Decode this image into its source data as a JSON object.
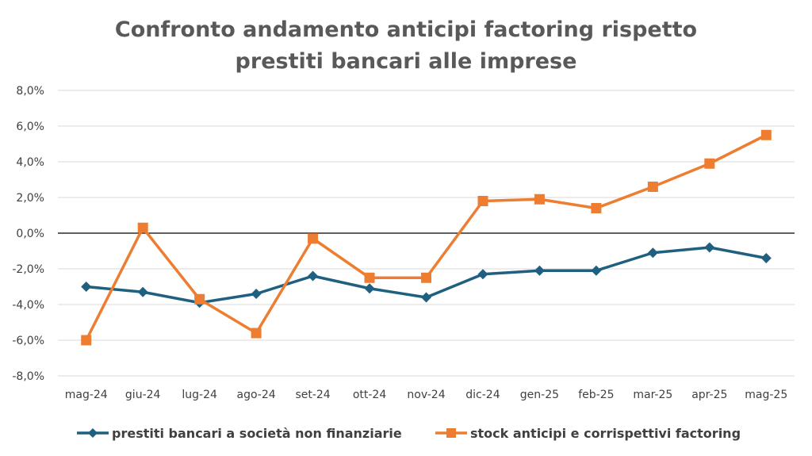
{
  "chart_data": {
    "type": "line",
    "title_line1": "Confronto andamento anticipi factoring rispetto",
    "title_line2": "prestiti bancari alle imprese",
    "categories": [
      "mag-24",
      "giu-24",
      "lug-24",
      "ago-24",
      "set-24",
      "ott-24",
      "nov-24",
      "dic-24",
      "gen-25",
      "feb-25",
      "mar-25",
      "apr-25",
      "mag-25"
    ],
    "ylim": [
      -8.0,
      8.0
    ],
    "yticks": [
      8.0,
      6.0,
      4.0,
      2.0,
      0.0,
      -2.0,
      -4.0,
      -6.0,
      -8.0
    ],
    "ytick_labels": [
      "8,0%",
      "6,0%",
      "4,0%",
      "2,0%",
      "0,0%",
      "-2,0%",
      "-4,0%",
      "-6,0%",
      "-8,0%"
    ],
    "grid": true,
    "legend_position": "bottom",
    "series": [
      {
        "name": "prestiti bancari a società non finanziarie",
        "color": "#1F5F80",
        "marker": "diamond",
        "values": [
          -3.0,
          -3.3,
          -3.9,
          -3.4,
          -2.4,
          -3.1,
          -3.6,
          -2.3,
          -2.1,
          -2.1,
          -1.1,
          -0.8,
          -1.4
        ]
      },
      {
        "name": "stock anticipi e corrispettivi factoring",
        "color": "#ED7D31",
        "marker": "square",
        "values": [
          -6.0,
          0.3,
          -3.7,
          -5.6,
          -0.3,
          -2.5,
          -2.5,
          1.8,
          1.9,
          1.4,
          2.6,
          3.9,
          5.5
        ]
      }
    ]
  }
}
